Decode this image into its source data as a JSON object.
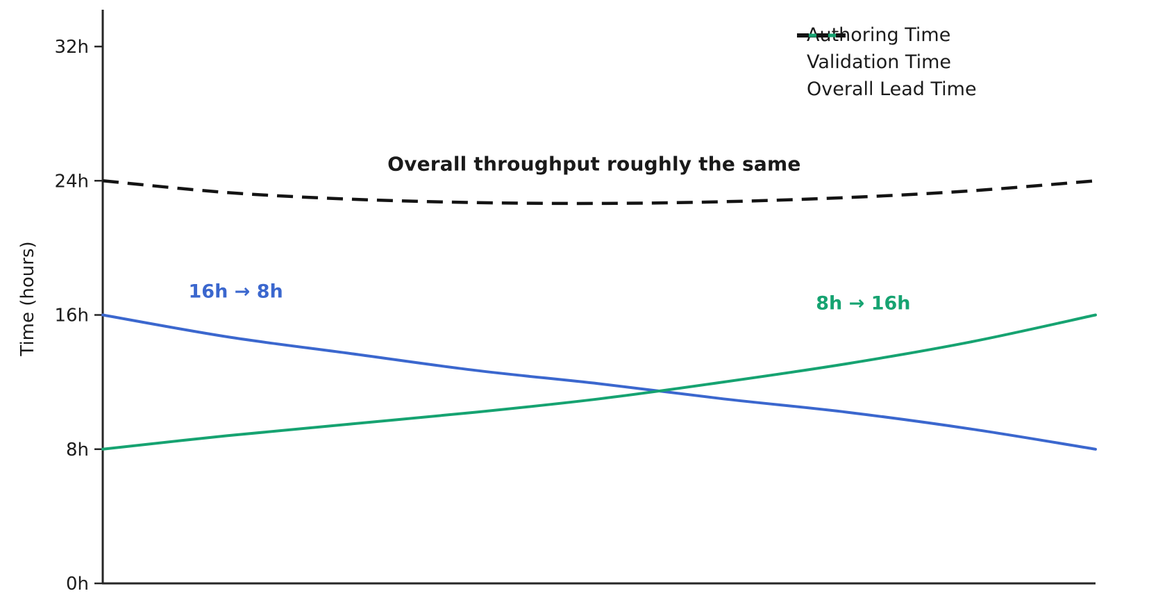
{
  "chart_data": {
    "type": "line",
    "title": "",
    "xlabel": "",
    "ylabel": "Time (hours)",
    "grid": false,
    "legend_position": "top-right",
    "ylim": [
      0,
      33
    ],
    "y_ticks": [
      "0h",
      "8h",
      "16h",
      "24h",
      "32h"
    ],
    "y_tick_values": [
      0,
      8,
      16,
      24,
      32
    ],
    "x_axis_note": "no x tick labels shown; x is normalized progression 0-1",
    "x": [
      0,
      0.125,
      0.25,
      0.375,
      0.5,
      0.625,
      0.75,
      0.875,
      1
    ],
    "series": [
      {
        "name": "Authoring Time",
        "color": "#3b67ce",
        "style": "solid",
        "values": [
          16,
          14.7,
          13.7,
          12.7,
          11.9,
          11.0,
          10.2,
          9.2,
          8
        ]
      },
      {
        "name": "Validation Time",
        "color": "#16a371",
        "style": "solid",
        "values": [
          8,
          8.8,
          9.5,
          10.2,
          11.0,
          12.0,
          13.1,
          14.4,
          16
        ]
      },
      {
        "name": "Overall Lead Time",
        "color": "#141414",
        "style": "dashed",
        "values": [
          24,
          23.3,
          22.9,
          22.7,
          22.65,
          22.75,
          23.0,
          23.4,
          24
        ]
      }
    ],
    "annotations": [
      {
        "text": "Overall throughput roughly the same",
        "color": "#1a1a1a",
        "x": 0.495,
        "y": 25.0
      },
      {
        "text": "16h → 8h",
        "color": "#3b67ce",
        "x": 0.134,
        "y": 17.4
      },
      {
        "text": "8h → 16h",
        "color": "#16a371",
        "x": 0.766,
        "y": 16.7
      }
    ]
  }
}
